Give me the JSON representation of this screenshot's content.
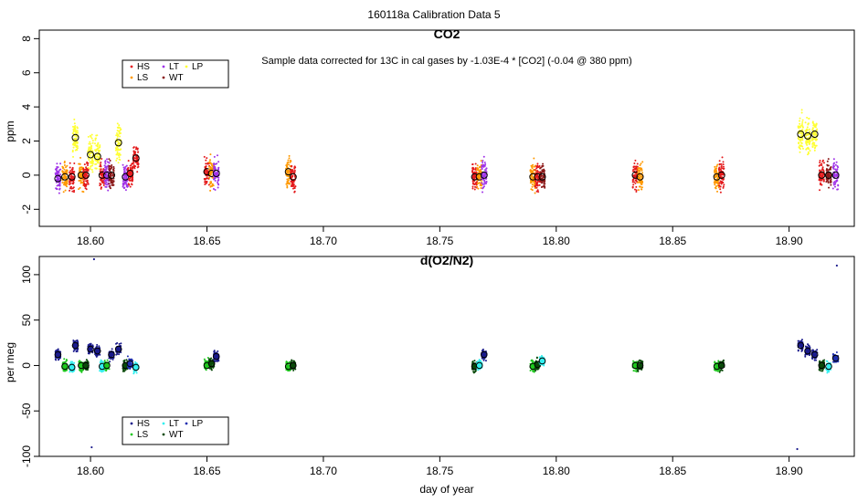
{
  "figure_title": "160118a   Calibration Data 5",
  "xlabel": "day of year",
  "colors": {
    "HS": "#e41a1c",
    "LS": "#ff9900",
    "LT": "#a033e8",
    "WT": "#8b1a1a",
    "LP": "#ffff33",
    "HS_o2": "#1a1a8c",
    "LS_o2": "#1ec81e",
    "LT_o2": "#33f0f0",
    "WT_o2": "#0a4a0a",
    "LP_o2": "#2030b0"
  },
  "chart_data": [
    {
      "type": "scatter",
      "title": "CO2",
      "annotation": "Sample data corrected for 13C in cal gases by -1.03E-4 * [CO2] (-0.04 @ 380 ppm)",
      "ylabel": "ppm",
      "xlim": [
        18.578,
        18.928
      ],
      "ylim": [
        -3,
        8.5
      ],
      "xticks": [
        "18.60",
        "18.65",
        "18.70",
        "18.75",
        "18.80",
        "18.85",
        "18.90"
      ],
      "yticks": [
        "-2",
        "0",
        "2",
        "4",
        "6",
        "8"
      ],
      "legend": {
        "placement": "top-left",
        "entries": [
          "HS",
          "LS",
          "LT",
          "WT",
          "LP"
        ]
      },
      "clusters": [
        {
          "x": 18.586,
          "y": -0.2,
          "series": "LT"
        },
        {
          "x": 18.589,
          "y": -0.1,
          "series": "LS"
        },
        {
          "x": 18.592,
          "y": -0.1,
          "series": "HS"
        },
        {
          "x": 18.5935,
          "y": 2.2,
          "series": "LP"
        },
        {
          "x": 18.596,
          "y": 0.0,
          "series": "LS"
        },
        {
          "x": 18.598,
          "y": 0.0,
          "series": "HS"
        },
        {
          "x": 18.6,
          "y": 1.2,
          "series": "LP"
        },
        {
          "x": 18.603,
          "y": 1.1,
          "series": "LP"
        },
        {
          "x": 18.605,
          "y": 0.0,
          "series": "HS"
        },
        {
          "x": 18.607,
          "y": 0.0,
          "series": "LT"
        },
        {
          "x": 18.609,
          "y": 0.0,
          "series": "WT"
        },
        {
          "x": 18.612,
          "y": 1.9,
          "series": "LP"
        },
        {
          "x": 18.615,
          "y": -0.1,
          "series": "LT"
        },
        {
          "x": 18.617,
          "y": 0.1,
          "series": "HS"
        },
        {
          "x": 18.6195,
          "y": 1.0,
          "series": "HS"
        },
        {
          "x": 18.65,
          "y": 0.2,
          "series": "HS"
        },
        {
          "x": 18.652,
          "y": 0.1,
          "series": "LS"
        },
        {
          "x": 18.654,
          "y": 0.1,
          "series": "LT"
        },
        {
          "x": 18.685,
          "y": 0.2,
          "series": "LS"
        },
        {
          "x": 18.687,
          "y": -0.1,
          "series": "HS"
        },
        {
          "x": 18.765,
          "y": -0.1,
          "series": "HS"
        },
        {
          "x": 18.767,
          "y": -0.1,
          "series": "LS"
        },
        {
          "x": 18.769,
          "y": 0.0,
          "series": "LT"
        },
        {
          "x": 18.79,
          "y": -0.1,
          "series": "LS"
        },
        {
          "x": 18.792,
          "y": -0.1,
          "series": "HS"
        },
        {
          "x": 18.794,
          "y": -0.1,
          "series": "WT"
        },
        {
          "x": 18.834,
          "y": 0.0,
          "series": "HS"
        },
        {
          "x": 18.836,
          "y": -0.1,
          "series": "LS"
        },
        {
          "x": 18.869,
          "y": -0.1,
          "series": "LS"
        },
        {
          "x": 18.871,
          "y": 0.0,
          "series": "HS"
        },
        {
          "x": 18.905,
          "y": 2.4,
          "series": "LP"
        },
        {
          "x": 18.908,
          "y": 2.3,
          "series": "LP"
        },
        {
          "x": 18.911,
          "y": 2.4,
          "series": "LP"
        },
        {
          "x": 18.914,
          "y": 0.0,
          "series": "HS"
        },
        {
          "x": 18.917,
          "y": 0.0,
          "series": "WT"
        },
        {
          "x": 18.92,
          "y": 0.0,
          "series": "LT"
        }
      ]
    },
    {
      "type": "scatter",
      "title": "d(O2/N2)",
      "ylabel": "per meg",
      "xlim": [
        18.578,
        18.928
      ],
      "ylim": [
        -100,
        120
      ],
      "xticks": [
        "18.60",
        "18.65",
        "18.70",
        "18.75",
        "18.80",
        "18.85",
        "18.90"
      ],
      "yticks": [
        "-100",
        "-50",
        "0",
        "50",
        "100"
      ],
      "legend": {
        "placement": "bottom-left",
        "entries": [
          "HS",
          "LS",
          "LT",
          "WT",
          "LP"
        ]
      },
      "clusters": [
        {
          "x": 18.586,
          "y": 12,
          "series": "HS"
        },
        {
          "x": 18.589,
          "y": -1,
          "series": "LS"
        },
        {
          "x": 18.592,
          "y": -2,
          "series": "LT"
        },
        {
          "x": 18.5935,
          "y": 22,
          "series": "HS"
        },
        {
          "x": 18.596,
          "y": 0,
          "series": "LS"
        },
        {
          "x": 18.598,
          "y": 0,
          "series": "WT"
        },
        {
          "x": 18.6,
          "y": 18,
          "series": "HS"
        },
        {
          "x": 18.603,
          "y": 16,
          "series": "HS"
        },
        {
          "x": 18.605,
          "y": -1,
          "series": "LT"
        },
        {
          "x": 18.607,
          "y": 0,
          "series": "LS"
        },
        {
          "x": 18.609,
          "y": 12,
          "series": "HS"
        },
        {
          "x": 18.612,
          "y": 18,
          "series": "HS"
        },
        {
          "x": 18.615,
          "y": 0,
          "series": "WT"
        },
        {
          "x": 18.617,
          "y": 2,
          "series": "LP"
        },
        {
          "x": 18.6195,
          "y": -2,
          "series": "LT"
        },
        {
          "x": 18.65,
          "y": 0,
          "series": "LS"
        },
        {
          "x": 18.652,
          "y": 2,
          "series": "WT"
        },
        {
          "x": 18.654,
          "y": 10,
          "series": "HS"
        },
        {
          "x": 18.685,
          "y": -1,
          "series": "LS"
        },
        {
          "x": 18.687,
          "y": 0,
          "series": "WT"
        },
        {
          "x": 18.765,
          "y": -1,
          "series": "WT"
        },
        {
          "x": 18.767,
          "y": 0,
          "series": "LT"
        },
        {
          "x": 18.769,
          "y": 12,
          "series": "HS"
        },
        {
          "x": 18.79,
          "y": -1,
          "series": "LS"
        },
        {
          "x": 18.792,
          "y": 1,
          "series": "WT"
        },
        {
          "x": 18.794,
          "y": 5,
          "series": "LT"
        },
        {
          "x": 18.834,
          "y": 0,
          "series": "LS"
        },
        {
          "x": 18.836,
          "y": 0,
          "series": "WT"
        },
        {
          "x": 18.869,
          "y": -1,
          "series": "LS"
        },
        {
          "x": 18.871,
          "y": 0,
          "series": "WT"
        },
        {
          "x": 18.905,
          "y": 22,
          "series": "HS"
        },
        {
          "x": 18.908,
          "y": 16,
          "series": "HS"
        },
        {
          "x": 18.911,
          "y": 12,
          "series": "HS"
        },
        {
          "x": 18.914,
          "y": 0,
          "series": "WT"
        },
        {
          "x": 18.917,
          "y": -1,
          "series": "LT"
        },
        {
          "x": 18.92,
          "y": 8,
          "series": "LP"
        }
      ],
      "outliers": [
        {
          "x": 18.6015,
          "y": 117,
          "series": "HS"
        },
        {
          "x": 18.6005,
          "y": -90,
          "series": "HS"
        },
        {
          "x": 18.9035,
          "y": -92,
          "series": "HS"
        },
        {
          "x": 18.9205,
          "y": 110,
          "series": "HS"
        }
      ]
    }
  ]
}
